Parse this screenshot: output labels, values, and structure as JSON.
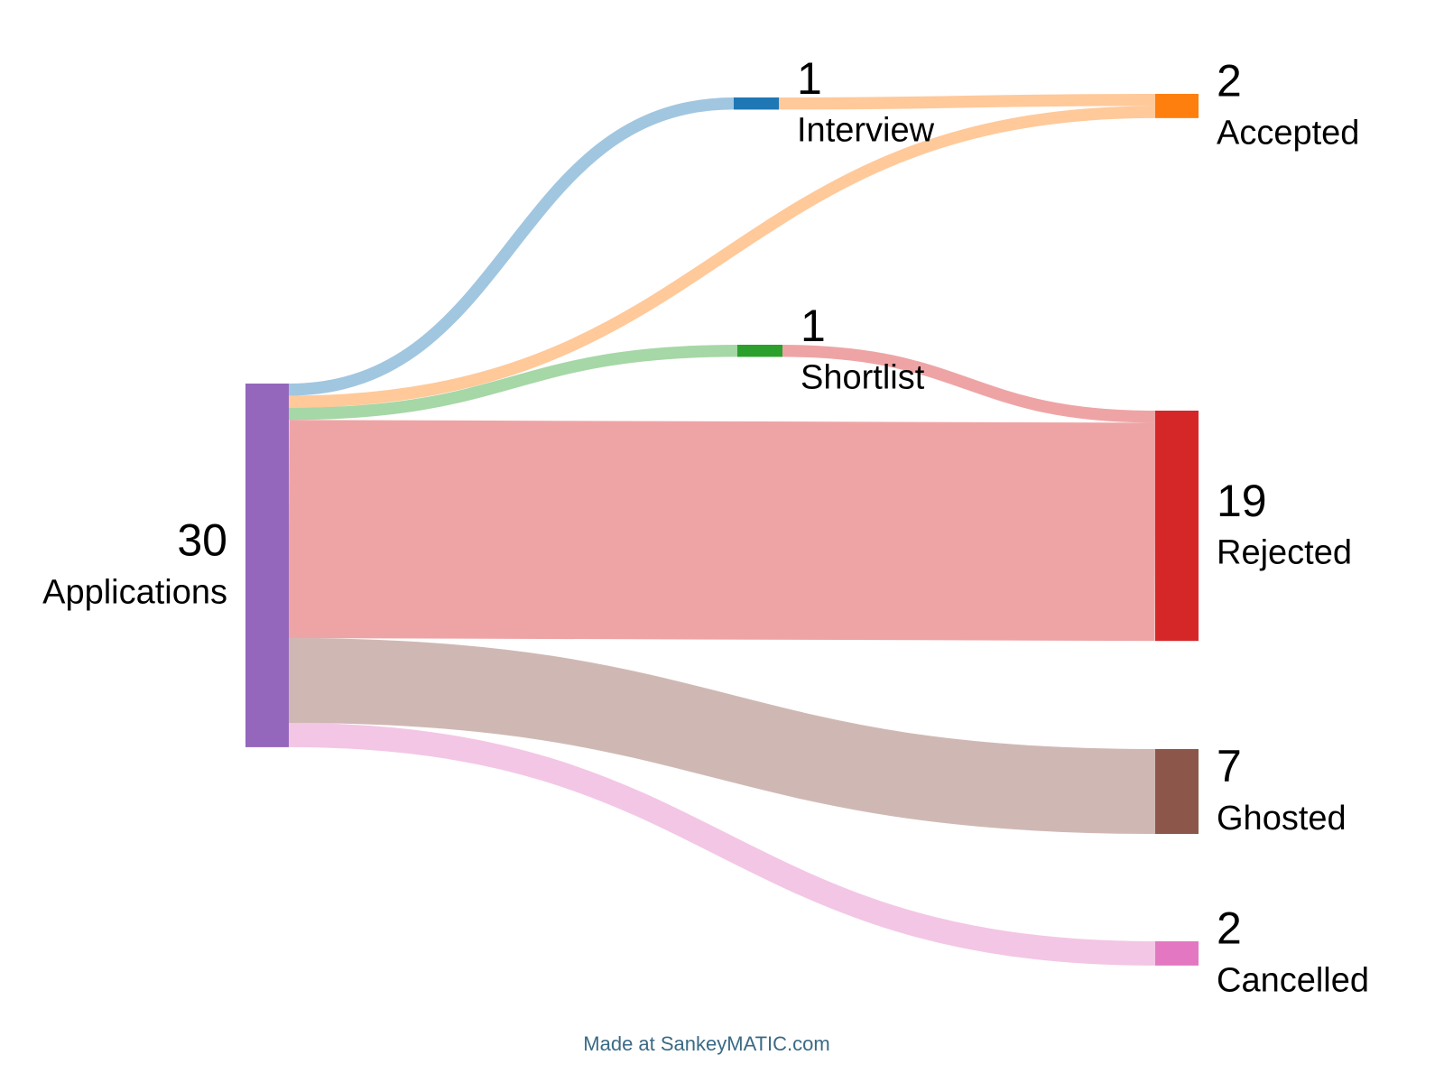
{
  "chart_data": {
    "type": "sankey",
    "nodes": [
      {
        "name": "Applications",
        "value": 30,
        "color": "#9467bd"
      },
      {
        "name": "Interview",
        "value": 1,
        "color": "#1f77b4"
      },
      {
        "name": "Shortlist",
        "value": 1,
        "color": "#2ca02c"
      },
      {
        "name": "Accepted",
        "value": 2,
        "color": "#ff7f0e"
      },
      {
        "name": "Rejected",
        "value": 19,
        "color": "#d62728"
      },
      {
        "name": "Ghosted",
        "value": 7,
        "color": "#8c564b"
      },
      {
        "name": "Cancelled",
        "value": 2,
        "color": "#e377c2"
      }
    ],
    "links": [
      {
        "source": "Applications",
        "target": "Interview",
        "value": 1
      },
      {
        "source": "Applications",
        "target": "Accepted",
        "value": 1
      },
      {
        "source": "Applications",
        "target": "Shortlist",
        "value": 1
      },
      {
        "source": "Applications",
        "target": "Rejected",
        "value": 18
      },
      {
        "source": "Applications",
        "target": "Ghosted",
        "value": 7
      },
      {
        "source": "Applications",
        "target": "Cancelled",
        "value": 2
      },
      {
        "source": "Interview",
        "target": "Accepted",
        "value": 1
      },
      {
        "source": "Shortlist",
        "target": "Rejected",
        "value": 1
      }
    ],
    "footer": "Made at SankeyMATIC.com"
  }
}
